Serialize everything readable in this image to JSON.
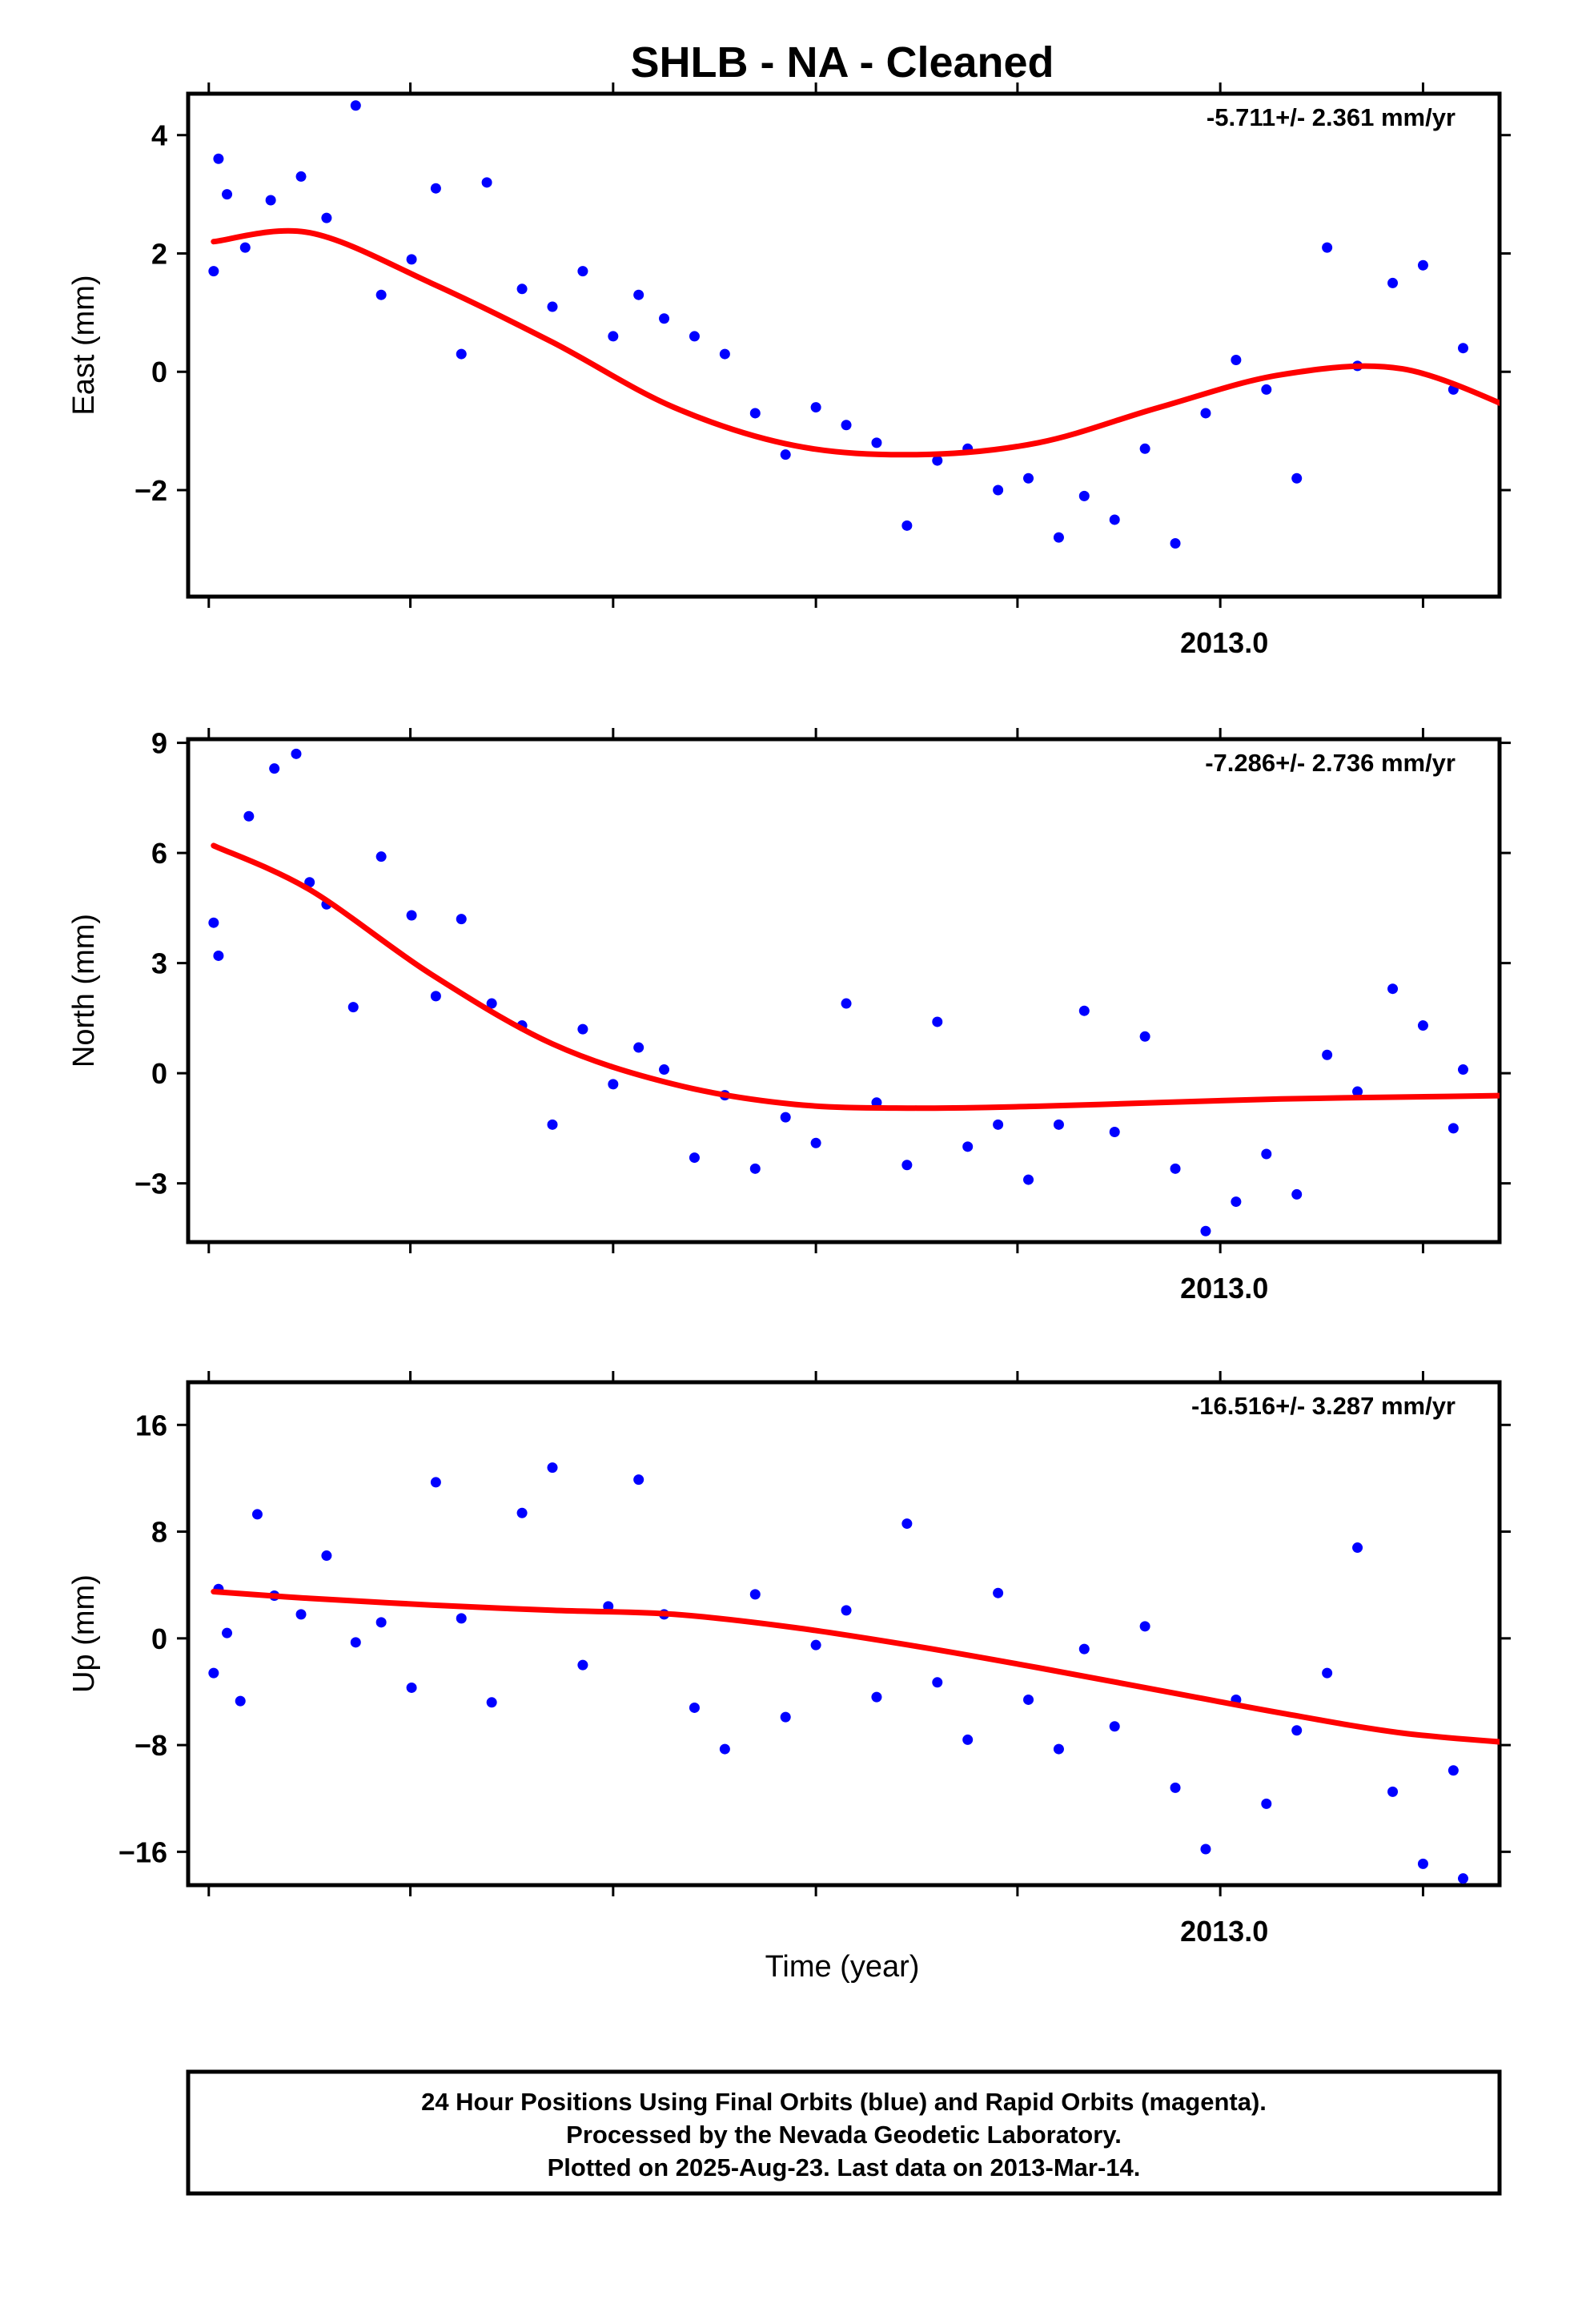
{
  "title": "SHLB  - NA - Cleaned",
  "xlabel": "Time (year)",
  "xtick_label": "2013.0",
  "colors": {
    "final_orbits": "#0000ff",
    "rapid_orbits": "#ff00ff",
    "fit": "#ff0000"
  },
  "footer": {
    "line1": "24 Hour Positions Using Final Orbits (blue) and Rapid Orbits (magenta).",
    "line2": "Processed by the Nevada Geodetic Laboratory.",
    "line3": "Plotted on 2025-Aug-23. Last data on 2013-Mar-14."
  },
  "chart_data": [
    {
      "type": "scatter",
      "panel": "east",
      "ylabel": "East (mm)",
      "rate": "-5.711+/- 2.361 mm/yr",
      "xlim": [
        2012.15,
        2013.23
      ],
      "ylim": [
        -3.8,
        4.7
      ],
      "yticks": [
        -2,
        0,
        2,
        4
      ],
      "ytick_labels": [
        "−2",
        "0",
        "2",
        "4"
      ],
      "xticks": [
        2012.167,
        2012.333,
        2012.5,
        2012.667,
        2012.833,
        2013.0,
        2013.167
      ],
      "xtick_labels": [
        "",
        "",
        "",
        "",
        "",
        "2013.0",
        ""
      ],
      "series": [
        {
          "role": "data",
          "x": [
            2012.171,
            2012.175,
            2012.182,
            2012.197,
            2012.218,
            2012.243,
            2012.264,
            2012.288,
            2012.309,
            2012.334,
            2012.354,
            2012.375,
            2012.396,
            2012.425,
            2012.45,
            2012.475,
            2012.5,
            2012.521,
            2012.542,
            2012.567,
            2012.592,
            2012.617,
            2012.642,
            2012.667,
            2012.692,
            2012.717,
            2012.742,
            2012.767,
            2012.792,
            2012.817,
            2012.842,
            2012.867,
            2012.888,
            2012.913,
            2012.938,
            2012.963,
            2012.988,
            2013.013,
            2013.038,
            2013.063,
            2013.088,
            2013.113,
            2013.142,
            2013.167,
            2013.192,
            2013.2
          ],
          "y": [
            1.7,
            3.6,
            3.0,
            2.1,
            2.9,
            3.3,
            2.6,
            4.5,
            1.3,
            1.9,
            3.1,
            0.3,
            3.2,
            1.4,
            1.1,
            1.7,
            0.6,
            1.3,
            0.9,
            0.6,
            0.3,
            -0.7,
            -1.4,
            -0.6,
            -0.9,
            -1.2,
            -2.6,
            -1.5,
            -1.3,
            -2.0,
            -1.8,
            -2.8,
            -2.1,
            -2.5,
            -1.3,
            -2.9,
            -0.7,
            0.2,
            -0.3,
            -1.8,
            2.1,
            0.1,
            1.5,
            1.8,
            -0.3,
            0.4
          ]
        },
        {
          "role": "fit",
          "x": [
            2012.171,
            2012.25,
            2012.35,
            2012.45,
            2012.55,
            2012.65,
            2012.75,
            2012.85,
            2012.95,
            2013.05,
            2013.15,
            2013.25
          ],
          "y": [
            2.2,
            2.35,
            1.5,
            0.5,
            -0.6,
            -1.25,
            -1.4,
            -1.2,
            -0.6,
            -0.05,
            0.05,
            -0.7
          ]
        }
      ]
    },
    {
      "type": "scatter",
      "panel": "north",
      "ylabel": "North (mm)",
      "rate": "-7.286+/- 2.736 mm/yr",
      "xlim": [
        2012.15,
        2013.23
      ],
      "ylim": [
        -4.6,
        9.1
      ],
      "yticks": [
        -3,
        0,
        3,
        6,
        9
      ],
      "ytick_labels": [
        "−3",
        "0",
        "3",
        "6",
        "9"
      ],
      "xticks": [
        2012.167,
        2012.333,
        2012.5,
        2012.667,
        2012.833,
        2013.0,
        2013.167
      ],
      "xtick_labels": [
        "",
        "",
        "",
        "",
        "",
        "2013.0",
        ""
      ],
      "series": [
        {
          "role": "data",
          "x": [
            2012.171,
            2012.175,
            2012.2,
            2012.221,
            2012.239,
            2012.25,
            2012.264,
            2012.286,
            2012.309,
            2012.334,
            2012.354,
            2012.375,
            2012.4,
            2012.425,
            2012.45,
            2012.475,
            2012.5,
            2012.521,
            2012.542,
            2012.567,
            2012.592,
            2012.617,
            2012.642,
            2012.667,
            2012.692,
            2012.717,
            2012.742,
            2012.767,
            2012.792,
            2012.817,
            2012.842,
            2012.867,
            2012.888,
            2012.913,
            2012.938,
            2012.963,
            2012.988,
            2013.013,
            2013.038,
            2013.063,
            2013.088,
            2013.113,
            2013.142,
            2013.167,
            2013.192,
            2013.2
          ],
          "y": [
            4.1,
            3.2,
            7.0,
            8.3,
            8.7,
            5.2,
            4.6,
            1.8,
            5.9,
            4.3,
            2.1,
            4.2,
            1.9,
            1.3,
            -1.4,
            1.2,
            -0.3,
            0.7,
            0.1,
            -2.3,
            -0.6,
            -2.6,
            -1.2,
            -1.9,
            1.9,
            -0.8,
            -2.5,
            1.4,
            -2.0,
            -1.4,
            -2.9,
            -1.4,
            1.7,
            -1.6,
            1.0,
            -2.6,
            -4.3,
            -3.5,
            -2.2,
            -3.3,
            0.5,
            -0.5,
            2.3,
            1.3,
            -1.5,
            0.1
          ]
        },
        {
          "role": "fit",
          "x": [
            2012.171,
            2012.25,
            2012.35,
            2012.45,
            2012.55,
            2012.65,
            2012.75,
            2012.85,
            2012.95,
            2013.05,
            2013.15,
            2013.25
          ],
          "y": [
            6.2,
            5.0,
            2.7,
            0.8,
            -0.3,
            -0.85,
            -0.95,
            -0.9,
            -0.8,
            -0.7,
            -0.65,
            -0.6
          ]
        }
      ]
    },
    {
      "type": "scatter",
      "panel": "up",
      "ylabel": "Up (mm)",
      "rate": "-16.516+/- 3.287 mm/yr",
      "xlim": [
        2012.15,
        2013.23
      ],
      "ylim": [
        -18.5,
        19.2
      ],
      "yticks": [
        -16,
        -8,
        0,
        8,
        16
      ],
      "ytick_labels": [
        "−16",
        "−8",
        "0",
        "8",
        "16"
      ],
      "xticks": [
        2012.167,
        2012.333,
        2012.5,
        2012.667,
        2012.833,
        2013.0,
        2013.167
      ],
      "xtick_labels": [
        "",
        "",
        "",
        "",
        "",
        "2013.0",
        ""
      ],
      "series": [
        {
          "role": "data",
          "x": [
            2012.171,
            2012.175,
            2012.182,
            2012.193,
            2012.207,
            2012.221,
            2012.243,
            2012.264,
            2012.288,
            2012.309,
            2012.334,
            2012.354,
            2012.375,
            2012.4,
            2012.425,
            2012.45,
            2012.475,
            2012.496,
            2012.521,
            2012.542,
            2012.567,
            2012.592,
            2012.617,
            2012.642,
            2012.667,
            2012.692,
            2012.717,
            2012.742,
            2012.767,
            2012.792,
            2012.817,
            2012.842,
            2012.867,
            2012.888,
            2012.913,
            2012.938,
            2012.963,
            2012.988,
            2013.013,
            2013.038,
            2013.063,
            2013.088,
            2013.113,
            2013.142,
            2013.167,
            2013.192,
            2013.2
          ],
          "y": [
            -2.6,
            3.7,
            0.4,
            -4.7,
            9.3,
            3.2,
            1.8,
            6.2,
            -0.3,
            1.2,
            -3.7,
            11.7,
            1.5,
            -4.8,
            9.4,
            12.8,
            -2.0,
            2.4,
            11.9,
            1.8,
            -5.2,
            -8.3,
            3.3,
            -5.9,
            -0.5,
            2.1,
            -4.4,
            8.6,
            -3.3,
            -7.6,
            3.4,
            -4.6,
            -8.3,
            -0.8,
            -6.6,
            0.9,
            -11.2,
            -15.8,
            -4.6,
            -12.4,
            -6.9,
            -2.6,
            6.8,
            -11.5,
            -16.9,
            -9.9,
            -18.0
          ]
        },
        {
          "role": "fit",
          "x": [
            2012.171,
            2012.25,
            2012.35,
            2012.45,
            2012.55,
            2012.65,
            2012.75,
            2012.85,
            2012.95,
            2013.05,
            2013.15,
            2013.25
          ],
          "y": [
            3.5,
            3.0,
            2.5,
            2.1,
            1.8,
            0.8,
            -0.6,
            -2.2,
            -3.9,
            -5.6,
            -7.1,
            -7.9
          ]
        }
      ]
    }
  ]
}
